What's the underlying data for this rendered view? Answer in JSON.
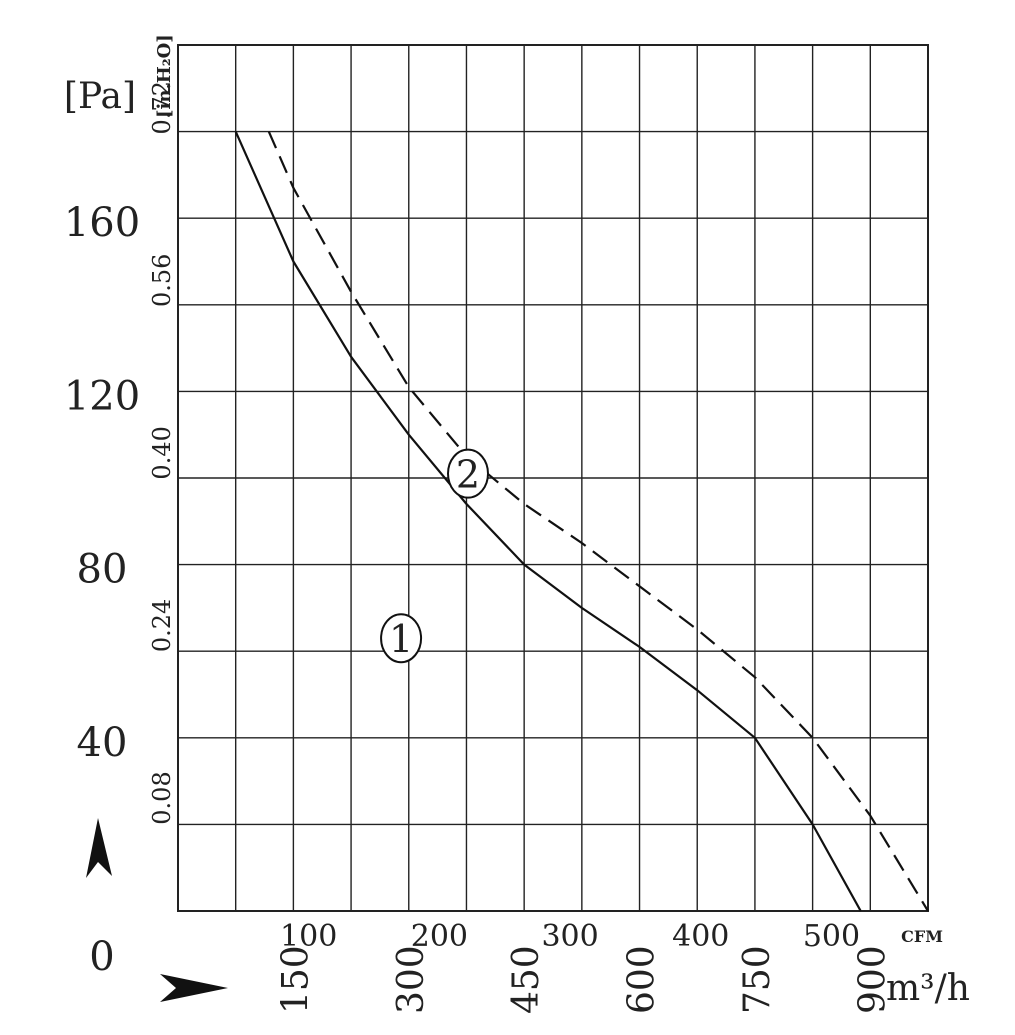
{
  "chart_data": {
    "type": "line",
    "units": {
      "pa": "[Pa]",
      "inh2o": "[in.H₂O]",
      "cfm": "CFM",
      "m3h": "m³/h"
    },
    "x_cfm_ticks": [
      "100",
      "200",
      "300",
      "400",
      "500"
    ],
    "x_m3h_ticks": [
      "150",
      "300",
      "450",
      "600",
      "750",
      "900"
    ],
    "y_pa_ticks": [
      "0",
      "40",
      "80",
      "120",
      "160"
    ],
    "y_inh2o_ticks": [
      "0.08",
      "0.24",
      "0.40",
      "0.56",
      "0.72"
    ],
    "xlim_m3h": [
      0,
      975
    ],
    "ylim_pa": [
      0,
      200
    ],
    "grid": true,
    "series": [
      {
        "name": "1",
        "line": "solid",
        "x_m3h": [
          75,
          150,
          225,
          300,
          375,
          450,
          525,
          600,
          675,
          750,
          825,
          900
        ],
        "y_pa": [
          180,
          150,
          128,
          110,
          94,
          80,
          70,
          61,
          51,
          40,
          20,
          -4
        ]
      },
      {
        "name": "2",
        "line": "dashed",
        "x_m3h": [
          118,
          150,
          225,
          300,
          375,
          450,
          525,
          600,
          675,
          750,
          825,
          900,
          975
        ],
        "y_pa": [
          180,
          167,
          143,
          121,
          105,
          94,
          85,
          75,
          65,
          54,
          40,
          22,
          0
        ]
      }
    ]
  }
}
